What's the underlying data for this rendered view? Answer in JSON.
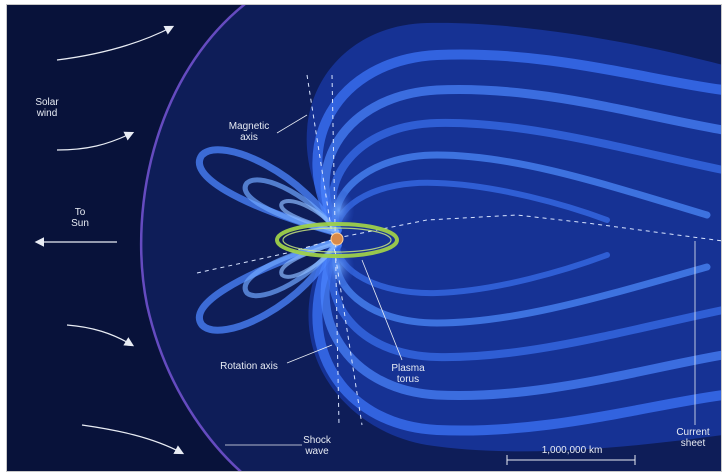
{
  "labels": {
    "solar_wind": "Solar\nwind",
    "to_sun": "To\nSun",
    "magnetic_axis": "Magnetic\naxis",
    "rotation_axis": "Rotation axis",
    "plasma_torus": "Plasma\ntorus",
    "shock_wave": "Shock\nwave",
    "scale": "1,000,000 km",
    "current_sheet": "Current\nsheet"
  },
  "colors": {
    "background": "#08123a",
    "field_dark": "#1535a8",
    "field_light": "#4f8dff",
    "torus": "#9ed04a",
    "planet": "#d98a4a",
    "shock": "#5a3fa0"
  }
}
